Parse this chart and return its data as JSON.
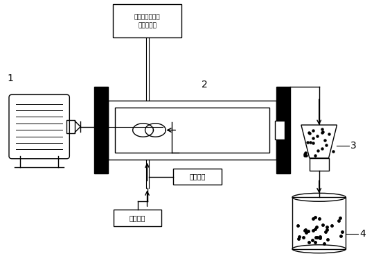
{
  "bg_color": "#ffffff",
  "label_1": "1",
  "label_2": "2",
  "label_3": "3",
  "label_4": "4",
  "box_top_line1": "镁盐、靴盐、锷",
  "box_top_line2": "盐混合溶液",
  "box_alkali": "筱性溶液",
  "box_buffer": "缓冲溶液"
}
